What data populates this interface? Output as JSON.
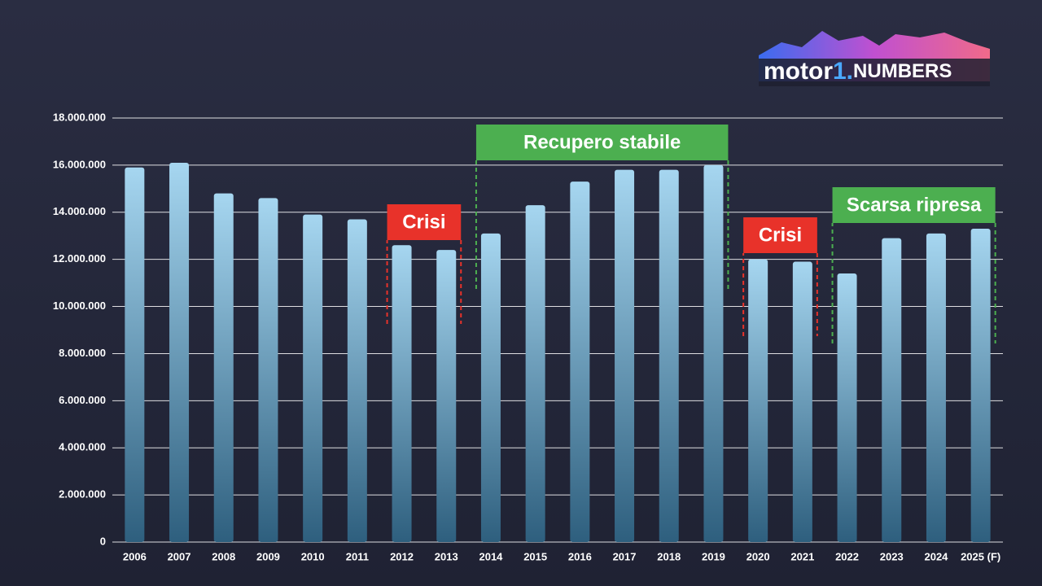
{
  "chart_data": {
    "type": "bar",
    "categories": [
      "2006",
      "2007",
      "2008",
      "2009",
      "2010",
      "2011",
      "2012",
      "2013",
      "2014",
      "2015",
      "2016",
      "2017",
      "2018",
      "2019",
      "2020",
      "2021",
      "2022",
      "2023",
      "2024",
      "2025 (F)"
    ],
    "values": [
      15900000,
      16100000,
      14800000,
      14600000,
      13900000,
      13700000,
      12600000,
      12400000,
      13100000,
      14300000,
      15300000,
      15800000,
      15800000,
      16000000,
      12000000,
      11900000,
      11400000,
      12900000,
      13100000,
      13300000
    ],
    "color": "#a6d6f0",
    "ylim": [
      0,
      18000000
    ],
    "yticks": [
      0,
      {
        "value": 2000000,
        "label": "2.000.000"
      },
      {
        "value": 4000000,
        "label": "4.000.000"
      },
      {
        "value": 6000000,
        "label": "6.000.000"
      },
      {
        "value": 8000000,
        "label": "8.000.000"
      },
      {
        "value": 10000000,
        "label": "10.000.000"
      },
      {
        "value": 12000000,
        "label": "12.000.000"
      },
      {
        "value": 14000000,
        "label": "14.000.000"
      },
      {
        "value": 16000000,
        "label": "16.000.000"
      },
      {
        "value": 18000000,
        "label": "18.000.000"
      }
    ],
    "grid": true,
    "annotations": [
      {
        "text": "Crisi",
        "color": "#e8322a",
        "start": "2012",
        "end": "2013"
      },
      {
        "text": "Recupero stabile",
        "color": "#4caf50",
        "start": "2014",
        "end": "2019"
      },
      {
        "text": "Crisi",
        "color": "#e8322a",
        "start": "2020",
        "end": "2021"
      },
      {
        "text": "Scarsa ripresa",
        "color": "#4caf50",
        "start": "2022",
        "end": "2025 (F)"
      }
    ]
  },
  "logo": {
    "parts": [
      "motor",
      "1.",
      "NUMBERS"
    ]
  }
}
